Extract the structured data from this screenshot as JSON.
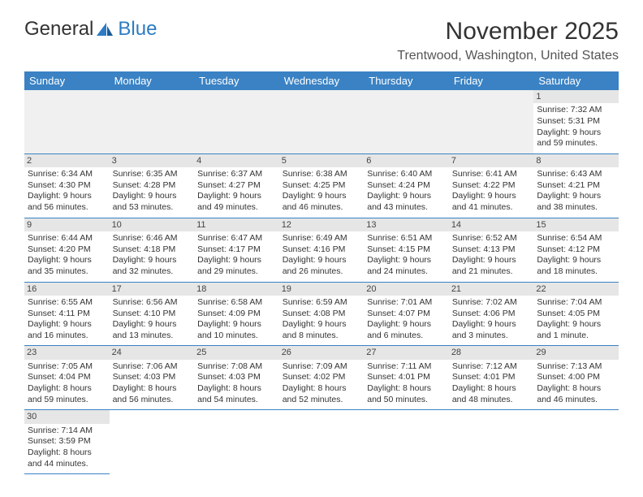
{
  "logo": {
    "text1": "General",
    "text2": "Blue"
  },
  "title": "November 2025",
  "location": "Trentwood, Washington, United States",
  "colors": {
    "header_bg": "#3a82c4",
    "header_text": "#ffffff",
    "daynum_bg": "#e6e6e6",
    "border": "#3a82c4",
    "logo_blue": "#2d7bc4"
  },
  "dayHeaders": [
    "Sunday",
    "Monday",
    "Tuesday",
    "Wednesday",
    "Thursday",
    "Friday",
    "Saturday"
  ],
  "weeks": [
    [
      null,
      null,
      null,
      null,
      null,
      null,
      {
        "n": "1",
        "sr": "Sunrise: 7:32 AM",
        "ss": "Sunset: 5:31 PM",
        "d1": "Daylight: 9 hours",
        "d2": "and 59 minutes."
      }
    ],
    [
      {
        "n": "2",
        "sr": "Sunrise: 6:34 AM",
        "ss": "Sunset: 4:30 PM",
        "d1": "Daylight: 9 hours",
        "d2": "and 56 minutes."
      },
      {
        "n": "3",
        "sr": "Sunrise: 6:35 AM",
        "ss": "Sunset: 4:28 PM",
        "d1": "Daylight: 9 hours",
        "d2": "and 53 minutes."
      },
      {
        "n": "4",
        "sr": "Sunrise: 6:37 AM",
        "ss": "Sunset: 4:27 PM",
        "d1": "Daylight: 9 hours",
        "d2": "and 49 minutes."
      },
      {
        "n": "5",
        "sr": "Sunrise: 6:38 AM",
        "ss": "Sunset: 4:25 PM",
        "d1": "Daylight: 9 hours",
        "d2": "and 46 minutes."
      },
      {
        "n": "6",
        "sr": "Sunrise: 6:40 AM",
        "ss": "Sunset: 4:24 PM",
        "d1": "Daylight: 9 hours",
        "d2": "and 43 minutes."
      },
      {
        "n": "7",
        "sr": "Sunrise: 6:41 AM",
        "ss": "Sunset: 4:22 PM",
        "d1": "Daylight: 9 hours",
        "d2": "and 41 minutes."
      },
      {
        "n": "8",
        "sr": "Sunrise: 6:43 AM",
        "ss": "Sunset: 4:21 PM",
        "d1": "Daylight: 9 hours",
        "d2": "and 38 minutes."
      }
    ],
    [
      {
        "n": "9",
        "sr": "Sunrise: 6:44 AM",
        "ss": "Sunset: 4:20 PM",
        "d1": "Daylight: 9 hours",
        "d2": "and 35 minutes."
      },
      {
        "n": "10",
        "sr": "Sunrise: 6:46 AM",
        "ss": "Sunset: 4:18 PM",
        "d1": "Daylight: 9 hours",
        "d2": "and 32 minutes."
      },
      {
        "n": "11",
        "sr": "Sunrise: 6:47 AM",
        "ss": "Sunset: 4:17 PM",
        "d1": "Daylight: 9 hours",
        "d2": "and 29 minutes."
      },
      {
        "n": "12",
        "sr": "Sunrise: 6:49 AM",
        "ss": "Sunset: 4:16 PM",
        "d1": "Daylight: 9 hours",
        "d2": "and 26 minutes."
      },
      {
        "n": "13",
        "sr": "Sunrise: 6:51 AM",
        "ss": "Sunset: 4:15 PM",
        "d1": "Daylight: 9 hours",
        "d2": "and 24 minutes."
      },
      {
        "n": "14",
        "sr": "Sunrise: 6:52 AM",
        "ss": "Sunset: 4:13 PM",
        "d1": "Daylight: 9 hours",
        "d2": "and 21 minutes."
      },
      {
        "n": "15",
        "sr": "Sunrise: 6:54 AM",
        "ss": "Sunset: 4:12 PM",
        "d1": "Daylight: 9 hours",
        "d2": "and 18 minutes."
      }
    ],
    [
      {
        "n": "16",
        "sr": "Sunrise: 6:55 AM",
        "ss": "Sunset: 4:11 PM",
        "d1": "Daylight: 9 hours",
        "d2": "and 16 minutes."
      },
      {
        "n": "17",
        "sr": "Sunrise: 6:56 AM",
        "ss": "Sunset: 4:10 PM",
        "d1": "Daylight: 9 hours",
        "d2": "and 13 minutes."
      },
      {
        "n": "18",
        "sr": "Sunrise: 6:58 AM",
        "ss": "Sunset: 4:09 PM",
        "d1": "Daylight: 9 hours",
        "d2": "and 10 minutes."
      },
      {
        "n": "19",
        "sr": "Sunrise: 6:59 AM",
        "ss": "Sunset: 4:08 PM",
        "d1": "Daylight: 9 hours",
        "d2": "and 8 minutes."
      },
      {
        "n": "20",
        "sr": "Sunrise: 7:01 AM",
        "ss": "Sunset: 4:07 PM",
        "d1": "Daylight: 9 hours",
        "d2": "and 6 minutes."
      },
      {
        "n": "21",
        "sr": "Sunrise: 7:02 AM",
        "ss": "Sunset: 4:06 PM",
        "d1": "Daylight: 9 hours",
        "d2": "and 3 minutes."
      },
      {
        "n": "22",
        "sr": "Sunrise: 7:04 AM",
        "ss": "Sunset: 4:05 PM",
        "d1": "Daylight: 9 hours",
        "d2": "and 1 minute."
      }
    ],
    [
      {
        "n": "23",
        "sr": "Sunrise: 7:05 AM",
        "ss": "Sunset: 4:04 PM",
        "d1": "Daylight: 8 hours",
        "d2": "and 59 minutes."
      },
      {
        "n": "24",
        "sr": "Sunrise: 7:06 AM",
        "ss": "Sunset: 4:03 PM",
        "d1": "Daylight: 8 hours",
        "d2": "and 56 minutes."
      },
      {
        "n": "25",
        "sr": "Sunrise: 7:08 AM",
        "ss": "Sunset: 4:03 PM",
        "d1": "Daylight: 8 hours",
        "d2": "and 54 minutes."
      },
      {
        "n": "26",
        "sr": "Sunrise: 7:09 AM",
        "ss": "Sunset: 4:02 PM",
        "d1": "Daylight: 8 hours",
        "d2": "and 52 minutes."
      },
      {
        "n": "27",
        "sr": "Sunrise: 7:11 AM",
        "ss": "Sunset: 4:01 PM",
        "d1": "Daylight: 8 hours",
        "d2": "and 50 minutes."
      },
      {
        "n": "28",
        "sr": "Sunrise: 7:12 AM",
        "ss": "Sunset: 4:01 PM",
        "d1": "Daylight: 8 hours",
        "d2": "and 48 minutes."
      },
      {
        "n": "29",
        "sr": "Sunrise: 7:13 AM",
        "ss": "Sunset: 4:00 PM",
        "d1": "Daylight: 8 hours",
        "d2": "and 46 minutes."
      }
    ],
    [
      {
        "n": "30",
        "sr": "Sunrise: 7:14 AM",
        "ss": "Sunset: 3:59 PM",
        "d1": "Daylight: 8 hours",
        "d2": "and 44 minutes."
      },
      null,
      null,
      null,
      null,
      null,
      null
    ]
  ]
}
